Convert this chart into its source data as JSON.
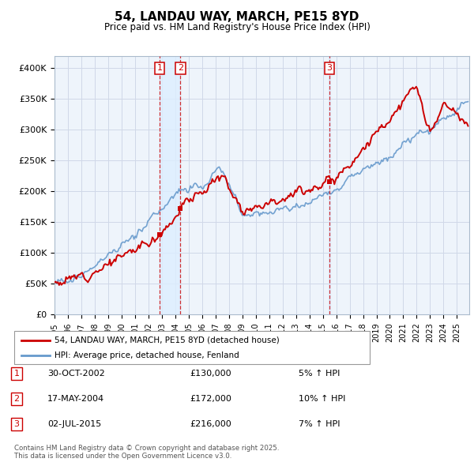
{
  "title": "54, LANDAU WAY, MARCH, PE15 8YD",
  "subtitle": "Price paid vs. HM Land Registry's House Price Index (HPI)",
  "ylabel_ticks": [
    "£0",
    "£50K",
    "£100K",
    "£150K",
    "£200K",
    "£250K",
    "£300K",
    "£350K",
    "£400K"
  ],
  "ytick_values": [
    0,
    50000,
    100000,
    150000,
    200000,
    250000,
    300000,
    350000,
    400000
  ],
  "ylim": [
    0,
    420000
  ],
  "xlim_start": 1995.0,
  "xlim_end": 2025.92,
  "hpi_color": "#6699cc",
  "price_color": "#cc0000",
  "marker_vline_color": "#cc0000",
  "background_color": "#ffffff",
  "grid_color": "#d0d8e8",
  "transactions": [
    {
      "label": "1",
      "date_dec": 2002.83,
      "price": 130000,
      "pct": "5%",
      "date_str": "30-OCT-2002"
    },
    {
      "label": "2",
      "date_dec": 2004.38,
      "price": 172000,
      "pct": "10%",
      "date_str": "17-MAY-2004"
    },
    {
      "label": "3",
      "date_dec": 2015.5,
      "price": 216000,
      "pct": "7%",
      "date_str": "02-JUL-2015"
    }
  ],
  "legend_entries": [
    {
      "label": "54, LANDAU WAY, MARCH, PE15 8YD (detached house)",
      "color": "#cc0000"
    },
    {
      "label": "HPI: Average price, detached house, Fenland",
      "color": "#6699cc"
    }
  ],
  "footer": "Contains HM Land Registry data © Crown copyright and database right 2025.\nThis data is licensed under the Open Government Licence v3.0.",
  "chart_band_color": "#ddeeff",
  "chart_bg_color": "#eef4fb"
}
